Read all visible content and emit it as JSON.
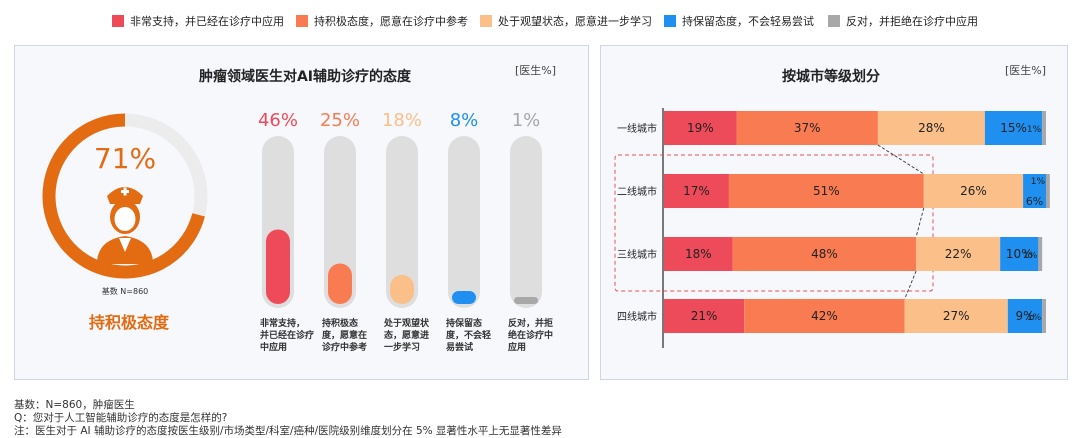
{
  "legend": [
    {
      "label": "非常支持，并已经在诊疗中应用",
      "color": "#ee4b5a"
    },
    {
      "label": "持积极态度，愿意在诊疗中参考",
      "color": "#f97b52"
    },
    {
      "label": "处于观望状态，愿意进一步学习",
      "color": "#fbbf8a"
    },
    {
      "label": "持保留态度，不会轻易尝试",
      "color": "#1f8ff0"
    },
    {
      "label": "反对，并拒绝在诊疗中应用",
      "color": "#a8a8a8"
    }
  ],
  "left_panel": {
    "title": "肿瘤领域医生对AI辅助诊疗的态度",
    "unit": "[医生%]",
    "gauge": {
      "value_label": "71%",
      "value": 71,
      "base_label": "基数 N=860",
      "caption": "持积极态度",
      "color": "#e36b12"
    },
    "pill_labels": [
      [
        "非常支持，",
        "并已经在诊疗",
        "中应用"
      ],
      [
        "持积极态",
        "度，愿意在",
        "诊疗中参考"
      ],
      [
        "处于观望状",
        "态，愿意进",
        "一步学习"
      ],
      [
        "持保留态",
        "度，不会轻",
        "易尝试"
      ],
      [
        "反对，并拒",
        "绝在诊疗中",
        "应用"
      ]
    ]
  },
  "right_panel": {
    "title": "按城市等级划分",
    "unit": "[医生%]"
  },
  "footer": {
    "line1": "基数：N=860，肿瘤医生",
    "line2": "Q：您对于人工智能辅助诊疗的态度是怎样的?",
    "line3": "注：医生对于 AI 辅助诊疗的态度按医生级别/市场类型/科室/癌种/医院级别维度划分在 5% 显著性水平上无显著性差异"
  },
  "chart_data": [
    {
      "type": "bar",
      "title": "肿瘤领域医生对AI辅助诊疗的态度",
      "categories": [
        "非常支持，并已经在诊疗中应用",
        "持积极态度，愿意在诊疗中参考",
        "处于观望状态，愿意进一步学习",
        "持保留态度，不会轻易尝试",
        "反对，并拒绝在诊疗中应用"
      ],
      "values": [
        46,
        25,
        18,
        8,
        1
      ],
      "value_labels": [
        "46%",
        "25%",
        "18%",
        "8%",
        "1%"
      ],
      "colors": [
        "#ee4b5a",
        "#f97b52",
        "#fbbf8a",
        "#1f8ff0",
        "#a8a8a8"
      ],
      "ylim": [
        0,
        100
      ],
      "grid": false
    },
    {
      "type": "bar",
      "stacked": true,
      "horizontal": true,
      "title": "按城市等级划分",
      "categories": [
        "一线城市",
        "二线城市",
        "三线城市",
        "四线城市"
      ],
      "series": [
        {
          "name": "非常支持，并已经在诊疗中应用",
          "color": "#ee4b5a",
          "values": [
            19,
            17,
            18,
            21
          ],
          "labels": [
            "19%",
            "17%",
            "18%",
            "21%"
          ]
        },
        {
          "name": "持积极态度，愿意在诊疗中参考",
          "color": "#f97b52",
          "values": [
            37,
            51,
            48,
            42
          ],
          "labels": [
            "37%",
            "51%",
            "48%",
            "42%"
          ]
        },
        {
          "name": "处于观望状态，愿意进一步学习",
          "color": "#fbbf8a",
          "values": [
            28,
            26,
            22,
            27
          ],
          "labels": [
            "28%",
            "26%",
            "22%",
            "27%"
          ]
        },
        {
          "name": "持保留态度，不会轻易尝试",
          "color": "#1f8ff0",
          "values": [
            15,
            6,
            10,
            9
          ],
          "labels": [
            "15%",
            "6%",
            "10%",
            "9%"
          ]
        },
        {
          "name": "反对，并拒绝在诊疗中应用",
          "color": "#a8a8a8",
          "values": [
            1,
            1,
            1,
            1
          ],
          "labels": [
            "1%",
            "1%",
            "1%",
            "1%"
          ]
        }
      ],
      "xlim": [
        0,
        100
      ],
      "grid": false,
      "legend": "top"
    }
  ]
}
